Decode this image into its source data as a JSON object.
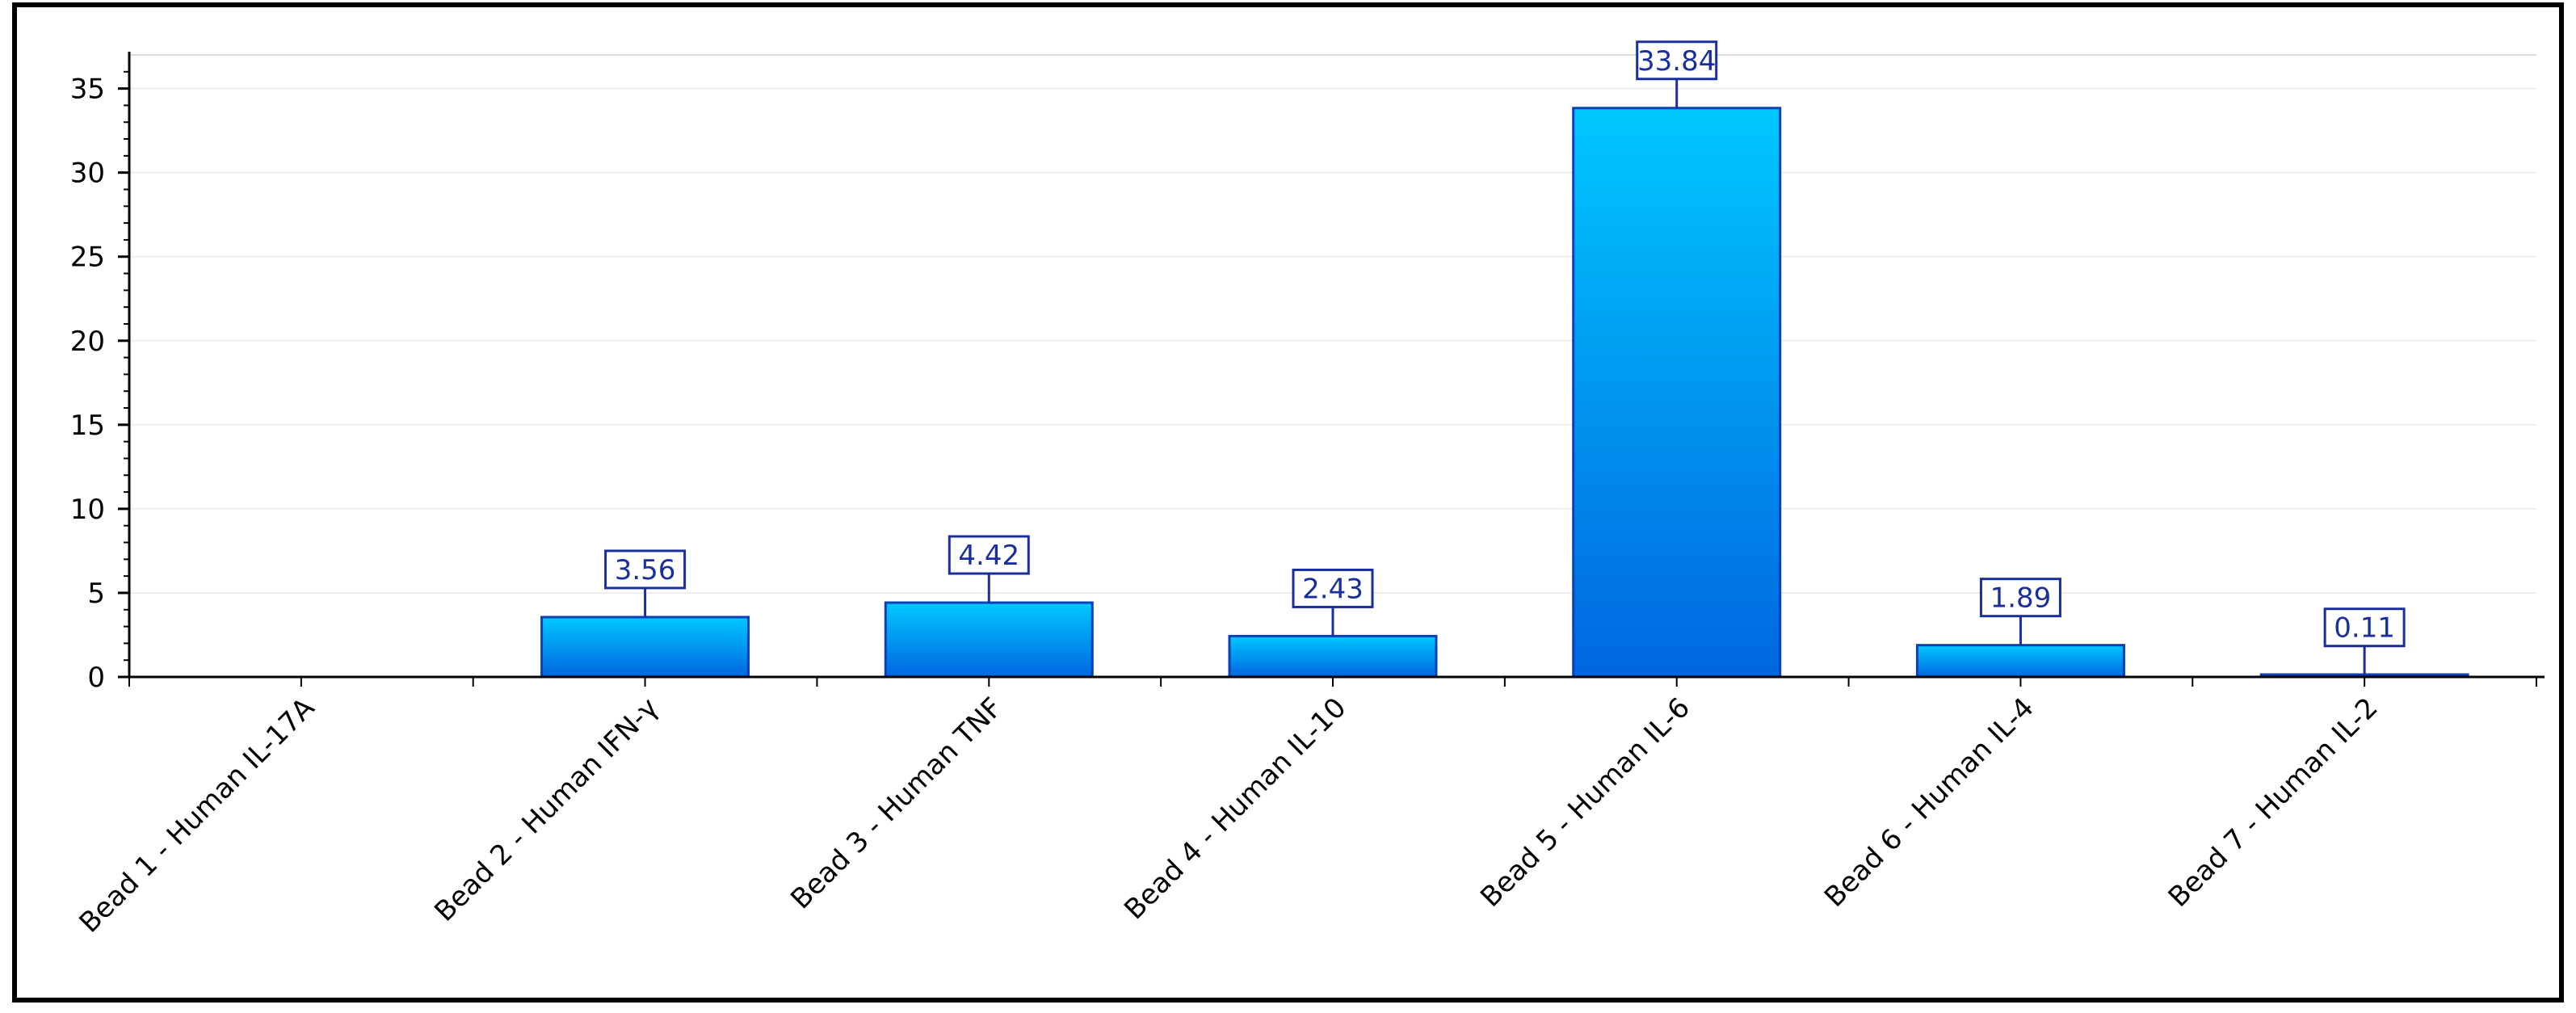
{
  "chart_data": {
    "type": "bar",
    "title": "",
    "xlabel": "",
    "ylabel": "",
    "categories": [
      "Bead 1 - Human IL-17A",
      "Bead 2 - Human IFN-γ",
      "Bead 3 - Human TNF",
      "Bead 4 - Human IL-10",
      "Bead 5 - Human IL-6",
      "Bead 6 - Human IL-4",
      "Bead 7 - Human IL-2"
    ],
    "values": [
      null,
      3.56,
      4.42,
      2.43,
      33.84,
      1.89,
      0.11
    ],
    "data_labels": [
      "",
      "3.56",
      "4.42",
      "2.43",
      "33.84",
      "1.89",
      "0.11"
    ],
    "ylim": [
      0,
      37
    ],
    "yticks": [
      0,
      5,
      10,
      15,
      20,
      25,
      30,
      35
    ],
    "ytick_labels": [
      "0",
      "5",
      "10",
      "15",
      "20",
      "25",
      "30",
      "35"
    ],
    "grid": true,
    "legend": "none",
    "colors": {
      "bar_top": "#00c8ff",
      "bar_bottom": "#0066e0",
      "bar_edge": "#0a3fb8",
      "label_border": "#1a2f9c",
      "label_text": "#1a2f9c",
      "axis": "#000000",
      "grid": "#eeeeee",
      "frame": "#000000"
    }
  }
}
